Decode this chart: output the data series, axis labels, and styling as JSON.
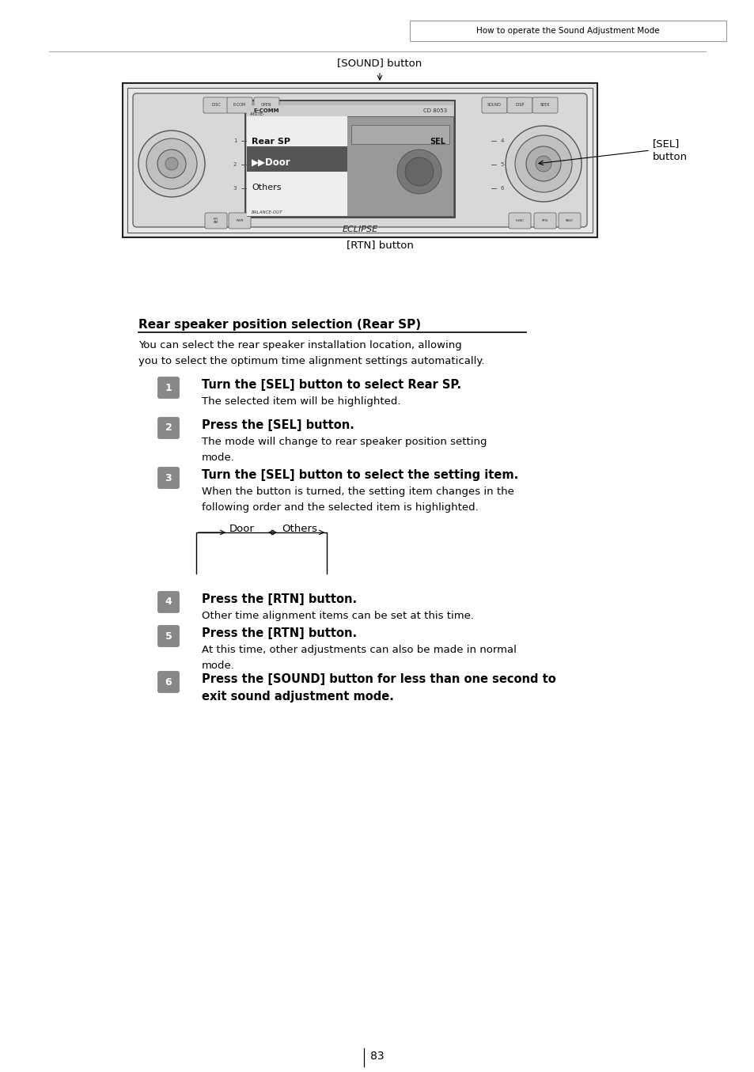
{
  "bg_color": "#ffffff",
  "header_text": "How to operate the Sound Adjustment Mode",
  "page_number": "83",
  "sound_button_label": "[SOUND] button",
  "sel_button_label": "[SEL]\nbutton",
  "rtn_button_label": "[RTN] button",
  "section_title": "Rear speaker position selection (Rear SP)",
  "intro_line1": "You can select the rear speaker installation location, allowing",
  "intro_line2": "you to select the optimum time alignment settings automatically.",
  "step1_bold": "Turn the [SEL] button to select Rear SP.",
  "step1_normal": "The selected item will be highlighted.",
  "step2_bold": "Press the [SEL] button.",
  "step2_normal1": "The mode will change to rear speaker position setting",
  "step2_normal2": "mode.",
  "step3_bold": "Turn the [SEL] button to select the setting item.",
  "step3_normal1": "When the button is turned, the setting item changes in the",
  "step3_normal2": "following order and the selected item is highlighted.",
  "step4_bold": "Press the [RTN] button.",
  "step4_normal": "Other time alignment items can be set at this time.",
  "step5_bold": "Press the [RTN] button.",
  "step5_normal1": "At this time, other adjustments can also be made in normal",
  "step5_normal2": "mode.",
  "step6_bold1": "Press the [SOUND] button for less than one second to",
  "step6_bold2": "exit sound adjustment mode.",
  "cycle_label": "→ Door ↔ Others ←",
  "icon_bg": "#888888",
  "icon_fg": "#ffffff"
}
